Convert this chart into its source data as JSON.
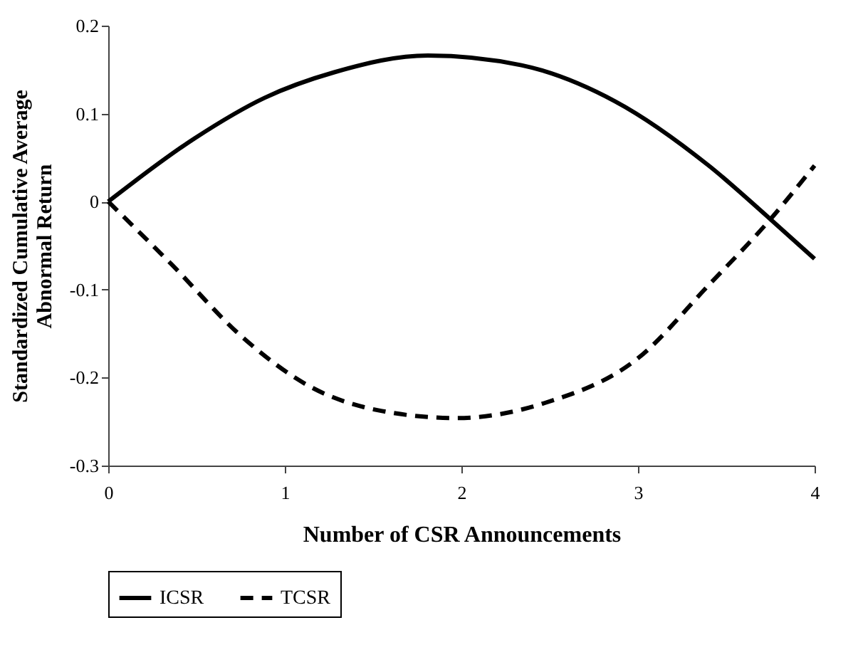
{
  "chart_data": {
    "type": "line",
    "xlabel": "Number of CSR Announcements",
    "ylabel": "Standardized Cumulative Average\nAbnormal Return",
    "xlim": [
      0,
      4
    ],
    "xticks": [
      0,
      1,
      2,
      3,
      4
    ],
    "ylim": [
      -0.3,
      0.2
    ],
    "yticks": [
      -0.3,
      -0.2,
      -0.1,
      0,
      0.1,
      0.2
    ],
    "grid": false,
    "legend": "bottom",
    "marker": "none",
    "series": [
      {
        "name": "ICSR",
        "color": "#000000",
        "line_style": "solid",
        "x": [
          0,
          0.49,
          0.886,
          1.28,
          1.81,
          2.34,
          2.87,
          3.4,
          3.75,
          4
        ],
        "values": [
          0,
          0.072,
          0.118,
          0.147,
          0.166,
          0.155,
          0.114,
          0.041,
          -0.02,
          -0.065
        ]
      },
      {
        "name": "TCSR",
        "color": "#000000",
        "line_style": "dashed",
        "x": [
          0,
          0.357,
          0.754,
          1.15,
          1.55,
          1.97,
          2.47,
          3.0,
          3.4,
          3.75,
          4
        ],
        "values": [
          0,
          -0.071,
          -0.153,
          -0.211,
          -0.238,
          -0.246,
          -0.229,
          -0.178,
          -0.095,
          -0.02,
          0.041
        ]
      }
    ]
  }
}
